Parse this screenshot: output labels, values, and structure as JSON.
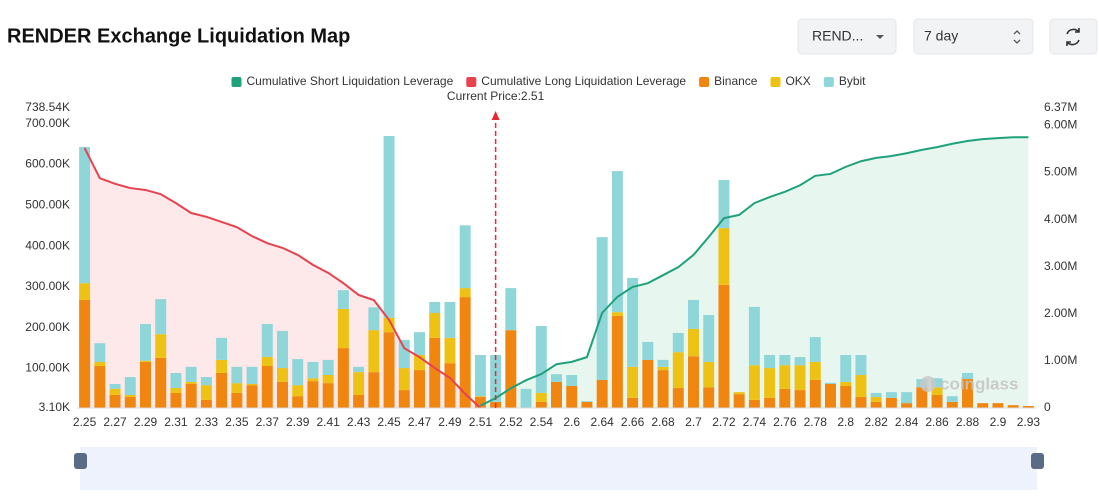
{
  "header": {
    "title": "RENDER Exchange Liquidation Map",
    "symbol": "REND...",
    "period": "7 day"
  },
  "chart_data": {
    "type": "bar",
    "annotation": "Current Price:2.51",
    "watermark": "coinglass",
    "categories": [
      "2.25",
      null,
      "2.27",
      null,
      "2.29",
      null,
      "2.31",
      null,
      "2.33",
      null,
      "2.35",
      null,
      "2.37",
      null,
      "2.39",
      null,
      "2.41",
      null,
      "2.43",
      null,
      "2.45",
      null,
      "2.47",
      null,
      "2.49",
      null,
      "2.51",
      null,
      "2.52",
      null,
      "2.54",
      null,
      "2.6",
      null,
      "2.64",
      null,
      "2.66",
      null,
      "2.68",
      null,
      "2.7",
      null,
      "2.72",
      null,
      "2.74",
      null,
      "2.76",
      null,
      "2.78",
      null,
      "2.8",
      null,
      "2.82",
      null,
      "2.84",
      null,
      "2.86",
      null,
      "2.88",
      null,
      "2.9",
      null,
      "2.93"
    ],
    "ylim": [
      3100,
      738540
    ],
    "yticks": [
      {
        "value": 3100,
        "label": "3.10K"
      },
      {
        "value": 100000,
        "label": "100.00K"
      },
      {
        "value": 200000,
        "label": "200.00K"
      },
      {
        "value": 300000,
        "label": "300.00K"
      },
      {
        "value": 400000,
        "label": "400.00K"
      },
      {
        "value": 500000,
        "label": "500.00K"
      },
      {
        "value": 600000,
        "label": "600.00K"
      },
      {
        "value": 700000,
        "label": "700.00K"
      },
      {
        "value": 738540,
        "label": "738.54K"
      }
    ],
    "y2lim": [
      0,
      6370000
    ],
    "y2ticks": [
      0,
      {
        "value": 1000000,
        "label": "1.00M"
      },
      {
        "value": 2000000,
        "label": "2.00M"
      },
      {
        "value": 3000000,
        "label": "3.00M"
      },
      {
        "value": 4000000,
        "label": "4.00M"
      },
      {
        "value": 5000000,
        "label": "5.00M"
      },
      {
        "value": 6000000,
        "label": "6.00M"
      },
      {
        "value": 6370000,
        "label": "6.37M"
      }
    ],
    "grid": false,
    "series": [
      {
        "name": "Cumulative Short Liquidation Leverage",
        "type": "line",
        "axis": "y2",
        "color": "#1fa27c",
        "area_color": "#e3f4ec",
        "values": [
          null,
          null,
          null,
          null,
          null,
          null,
          null,
          null,
          null,
          null,
          null,
          null,
          null,
          null,
          null,
          null,
          null,
          null,
          null,
          null,
          null,
          null,
          null,
          null,
          null,
          null,
          50000,
          210000,
          420000,
          590000,
          720000,
          930000,
          980000,
          1080000,
          2020000,
          2360000,
          2570000,
          2650000,
          2820000,
          2990000,
          3250000,
          3630000,
          4030000,
          4100000,
          4350000,
          4480000,
          4590000,
          4730000,
          4930000,
          4970000,
          5120000,
          5240000,
          5310000,
          5350000,
          5410000,
          5480000,
          5540000,
          5610000,
          5670000,
          5710000,
          5730000,
          5750000,
          5750000
        ]
      },
      {
        "name": "Cumulative Long Liquidation Leverage",
        "type": "line",
        "axis": "y2",
        "color": "#e8424f",
        "area_color": "#fde4e6",
        "values": [
          5520000,
          4880000,
          4760000,
          4670000,
          4630000,
          4540000,
          4350000,
          4140000,
          4060000,
          3950000,
          3840000,
          3650000,
          3500000,
          3400000,
          3250000,
          3040000,
          2870000,
          2650000,
          2400000,
          2290000,
          1870000,
          1270000,
          1080000,
          850000,
          640000,
          300000,
          0,
          null,
          null,
          null,
          null,
          null,
          null,
          null,
          null,
          null,
          null,
          null,
          null,
          null,
          null,
          null,
          null,
          null,
          null,
          null,
          null,
          null,
          null,
          null,
          null,
          null,
          null,
          null,
          null,
          null,
          null,
          null,
          null,
          null,
          null,
          null,
          null
        ]
      },
      {
        "name": "Binance",
        "type": "bar",
        "color": "#f08510",
        "values": [
          268000,
          106000,
          35000,
          30000,
          116000,
          126000,
          40000,
          62000,
          23000,
          89000,
          40000,
          59000,
          106000,
          67000,
          32000,
          69000,
          64000,
          150000,
          35000,
          91000,
          189000,
          47000,
          96000,
          175000,
          113000,
          275000,
          30000,
          18000,
          194000,
          0,
          18000,
          67000,
          57000,
          18000,
          72000,
          229000,
          28000,
          121000,
          96000,
          52000,
          130000,
          54000,
          305000,
          37000,
          23000,
          28000,
          50000,
          47000,
          72000,
          62000,
          57000,
          30000,
          18000,
          28000,
          15000,
          54000,
          35000,
          18000,
          74000,
          15000,
          15000,
          10000,
          8000
        ]
      },
      {
        "name": "OKX",
        "type": "bar",
        "color": "#eec214",
        "values": [
          41000,
          10000,
          15000,
          5000,
          3000,
          58000,
          12000,
          5000,
          36000,
          32000,
          24000,
          3000,
          22000,
          34000,
          27000,
          7000,
          20000,
          96000,
          56000,
          103000,
          35000,
          54000,
          37000,
          61000,
          62000,
          22000,
          2000,
          0,
          0,
          0,
          22000,
          0,
          0,
          0,
          0,
          9000,
          76000,
          0,
          8000,
          88000,
          67000,
          62000,
          139000,
          5000,
          85000,
          73000,
          58000,
          61000,
          44000,
          0,
          10000,
          54000,
          12000,
          0,
          0,
          0,
          19000,
          0,
          0,
          0,
          0,
          0,
          0
        ]
      },
      {
        "name": "Bybit",
        "type": "bar",
        "color": "#8fd6d9",
        "values": [
          334000,
          46000,
          12000,
          44000,
          90000,
          86000,
          37000,
          37000,
          20000,
          54000,
          40000,
          42000,
          81000,
          91000,
          64000,
          40000,
          37000,
          46000,
          13000,
          56000,
          446000,
          69000,
          56000,
          27000,
          88000,
          154000,
          101000,
          115000,
          103000,
          50000,
          164000,
          19000,
          27000,
          2000,
          350000,
          346000,
          218000,
          44000,
          17000,
          47000,
          71000,
          115000,
          118000,
          0,
          143000,
          32000,
          25000,
          20000,
          61000,
          3000,
          66000,
          49000,
          10000,
          14000,
          27000,
          20000,
          22000,
          14000,
          15000,
          0,
          0,
          0,
          0
        ]
      }
    ]
  }
}
